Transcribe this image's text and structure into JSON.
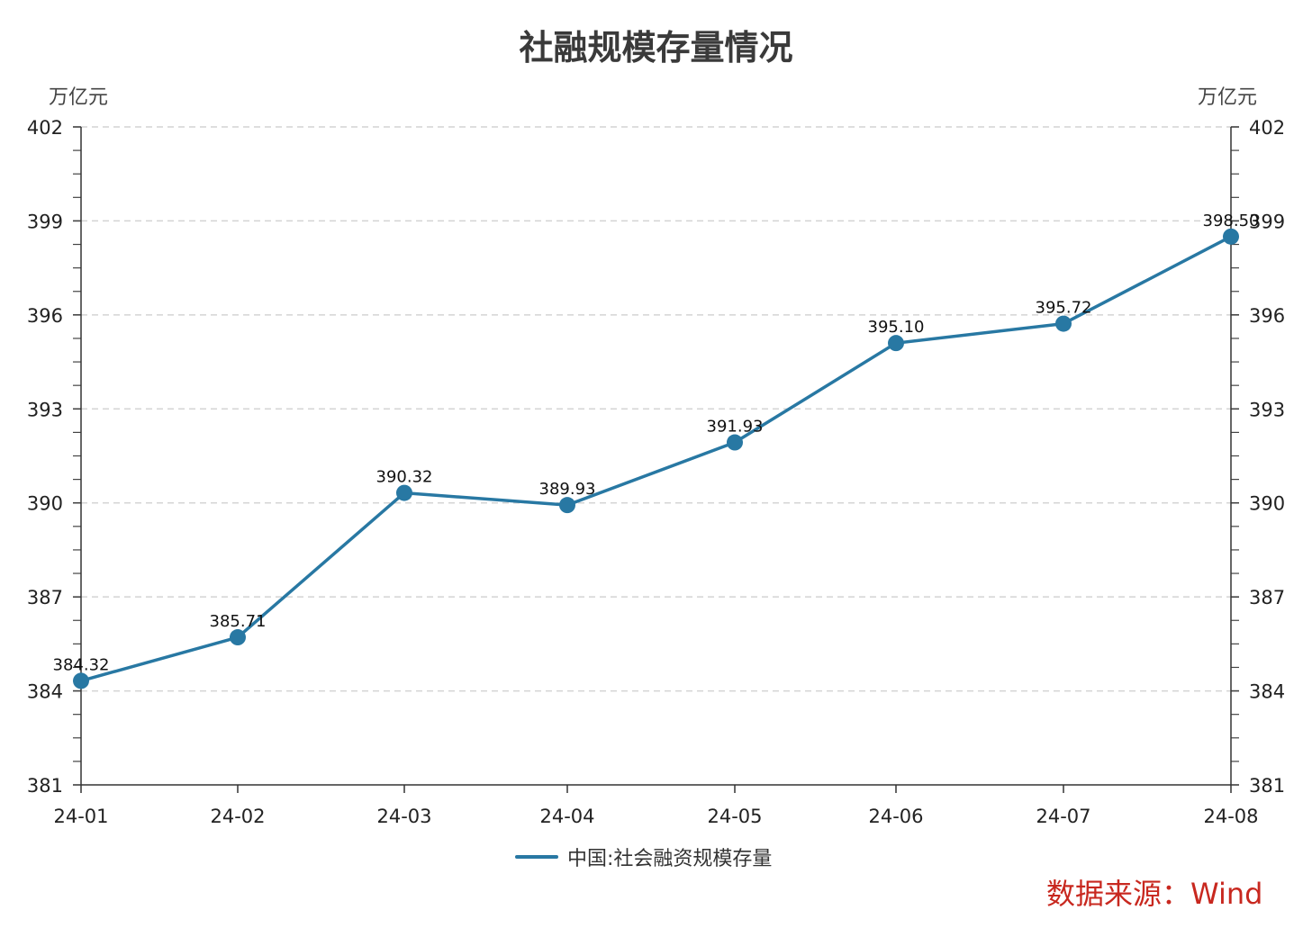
{
  "chart_data": {
    "type": "line",
    "title": "社融规模存量情况",
    "y_unit_left": "万亿元",
    "y_unit_right": "万亿元",
    "categories": [
      "24-01",
      "24-02",
      "24-03",
      "24-04",
      "24-05",
      "24-06",
      "24-07",
      "24-08"
    ],
    "series": [
      {
        "name": "中国:社会融资规模存量",
        "values": [
          384.32,
          385.71,
          390.32,
          389.93,
          391.93,
          395.1,
          395.72,
          398.5
        ],
        "labels": [
          "384.32",
          "385.71",
          "390.32",
          "389.93",
          "391.93",
          "395.10",
          "395.72",
          "398.50"
        ]
      }
    ],
    "ylim": [
      381,
      402
    ],
    "yticks": [
      381,
      384,
      387,
      390,
      393,
      396,
      399,
      402
    ],
    "grid": true,
    "legend_position": "bottom-center",
    "color": "#2878a3"
  },
  "source": "数据来源：Wind"
}
